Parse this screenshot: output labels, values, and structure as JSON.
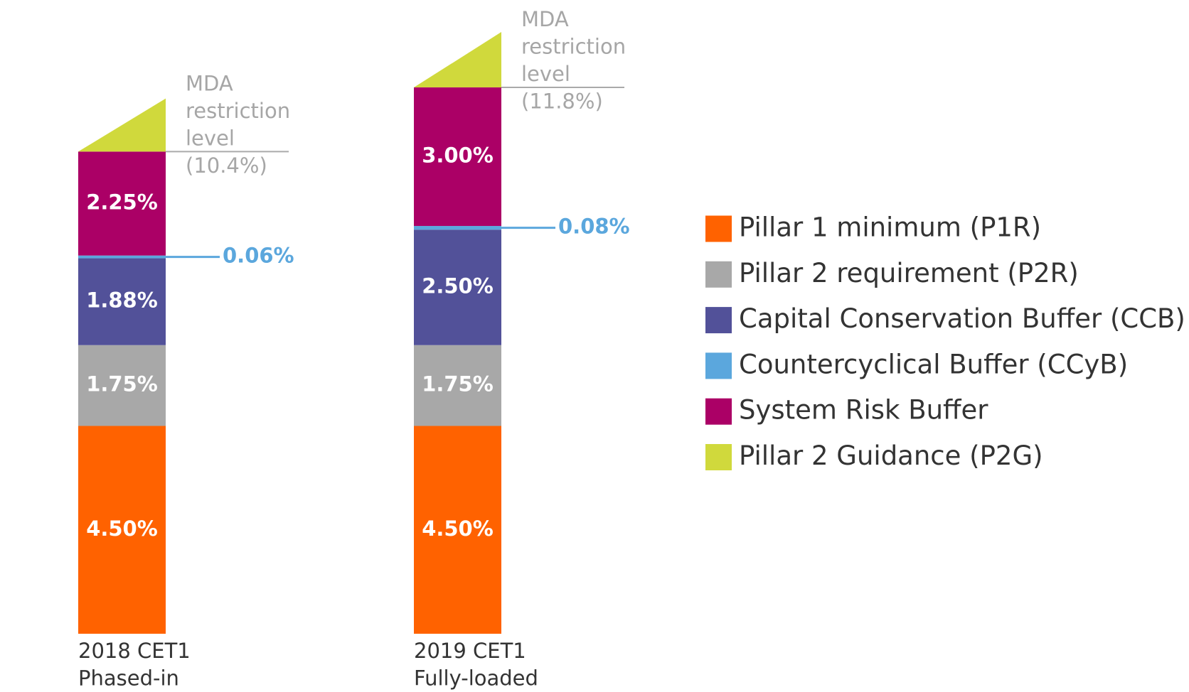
{
  "chart_data": {
    "type": "stacked-bar",
    "categories": [
      [
        "2018 CET1",
        "Phased-in"
      ],
      [
        "2019 CET1",
        "Fully-loaded"
      ]
    ],
    "series": [
      {
        "name": "Pillar 1 minimum (P1R)",
        "color": "#ff6200",
        "values": [
          4.5,
          4.5
        ],
        "value_labels": [
          "4.50%",
          "4.50%"
        ]
      },
      {
        "name": "Pillar 2 requirement (P2R)",
        "color": "#a8a8a8",
        "values": [
          1.75,
          1.75
        ],
        "value_labels": [
          "1.75%",
          "1.75%"
        ]
      },
      {
        "name": "Capital Conservation Buffer (CCB)",
        "color": "#525199",
        "values": [
          1.88,
          2.5
        ],
        "value_labels": [
          "1.88%",
          "2.50%"
        ]
      },
      {
        "name": "Countercyclical Buffer (CCyB)",
        "color": "#5ba7dd",
        "values": [
          0.06,
          0.08
        ],
        "value_labels": [
          "0.06%",
          "0.08%"
        ]
      },
      {
        "name": "System Risk Buffer",
        "color": "#ab0066",
        "values": [
          2.25,
          3.0
        ],
        "value_labels": [
          "2.25%",
          "3.00%"
        ]
      },
      {
        "name": "Pillar 2 Guidance (P2G)",
        "color": "#d0d93c",
        "values": [
          1.15,
          1.2
        ]
      }
    ],
    "annotations": [
      [
        "MDA",
        "restriction",
        "level",
        "(10.4%)"
      ],
      [
        "MDA",
        "restriction",
        "level",
        "(11.8%)"
      ]
    ],
    "legend": "right"
  }
}
